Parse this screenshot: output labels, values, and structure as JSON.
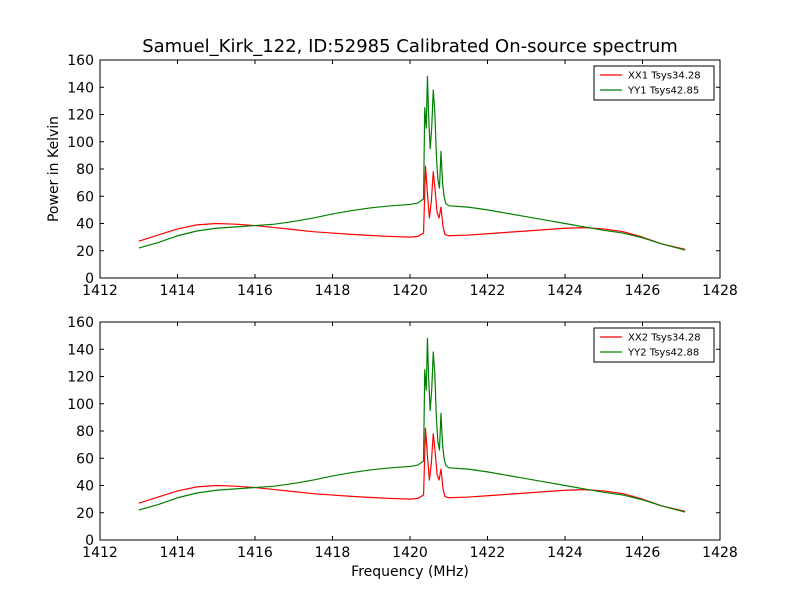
{
  "chart_data": [
    {
      "type": "line",
      "title": "Samuel_Kirk_122, ID:52985 Calibrated On-source spectrum",
      "xlabel": "",
      "ylabel": "Power in Kelvin",
      "xlim": [
        1412,
        1428
      ],
      "ylim": [
        0,
        160
      ],
      "xticks": [
        1412,
        1414,
        1416,
        1418,
        1420,
        1422,
        1424,
        1426,
        1428
      ],
      "yticks": [
        0,
        20,
        40,
        60,
        80,
        100,
        120,
        140,
        160
      ],
      "grid": false,
      "legend_position": "top-right",
      "series": [
        {
          "name": "XX1 Tsys34.28",
          "color": "#ff0000",
          "x": [
            1413.0,
            1413.5,
            1414.0,
            1414.5,
            1415.0,
            1415.5,
            1416.0,
            1416.5,
            1417.0,
            1417.5,
            1418.0,
            1418.5,
            1419.0,
            1419.5,
            1420.0,
            1420.2,
            1420.35,
            1420.4,
            1420.45,
            1420.5,
            1420.55,
            1420.6,
            1420.65,
            1420.7,
            1420.75,
            1420.8,
            1420.85,
            1420.9,
            1421.0,
            1421.5,
            1422.0,
            1422.5,
            1423.0,
            1423.5,
            1424.0,
            1424.5,
            1425.0,
            1425.5,
            1426.0,
            1426.5,
            1427.1
          ],
          "values": [
            27,
            31.5,
            36,
            39,
            40,
            39.5,
            38.5,
            37,
            35.5,
            34,
            33,
            32,
            31.2,
            30.5,
            30,
            30.5,
            33,
            82,
            62,
            44,
            56,
            78,
            64,
            48,
            44,
            52,
            38,
            32,
            31,
            31.5,
            32.5,
            33.5,
            34.5,
            35.5,
            36.5,
            37,
            36,
            34,
            30,
            25,
            21
          ]
        },
        {
          "name": "YY1 Tsys42.85",
          "color": "#008000",
          "x": [
            1413.0,
            1413.5,
            1414.0,
            1414.5,
            1415.0,
            1415.5,
            1416.0,
            1416.5,
            1417.0,
            1417.5,
            1418.0,
            1418.5,
            1419.0,
            1419.5,
            1420.0,
            1420.2,
            1420.35,
            1420.38,
            1420.42,
            1420.45,
            1420.48,
            1420.52,
            1420.56,
            1420.6,
            1420.64,
            1420.68,
            1420.72,
            1420.76,
            1420.8,
            1420.84,
            1420.88,
            1420.92,
            1421.0,
            1421.5,
            1422.0,
            1422.5,
            1423.0,
            1423.5,
            1424.0,
            1424.5,
            1425.0,
            1425.5,
            1426.0,
            1426.5,
            1427.1
          ],
          "values": [
            22,
            26,
            31,
            34.5,
            36.5,
            37.5,
            38.5,
            39.5,
            41.5,
            44,
            47,
            49.5,
            51.5,
            53,
            54,
            55,
            58,
            125,
            110,
            148,
            120,
            95,
            110,
            138,
            122,
            90,
            72,
            66,
            93,
            70,
            60,
            55,
            53,
            52,
            50,
            47.5,
            45,
            42.5,
            40,
            37.5,
            35,
            33,
            29.5,
            25,
            20.5
          ]
        }
      ]
    },
    {
      "type": "line",
      "title": "",
      "xlabel": "Frequency (MHz)",
      "ylabel": "",
      "xlim": [
        1412,
        1428
      ],
      "ylim": [
        0,
        160
      ],
      "xticks": [
        1412,
        1414,
        1416,
        1418,
        1420,
        1422,
        1424,
        1426,
        1428
      ],
      "yticks": [
        0,
        20,
        40,
        60,
        80,
        100,
        120,
        140,
        160
      ],
      "grid": false,
      "legend_position": "top-right",
      "series": [
        {
          "name": "XX2 Tsys34.28",
          "color": "#ff0000",
          "x": [
            1413.0,
            1413.5,
            1414.0,
            1414.5,
            1415.0,
            1415.5,
            1416.0,
            1416.5,
            1417.0,
            1417.5,
            1418.0,
            1418.5,
            1419.0,
            1419.5,
            1420.0,
            1420.2,
            1420.35,
            1420.4,
            1420.45,
            1420.5,
            1420.55,
            1420.6,
            1420.65,
            1420.7,
            1420.75,
            1420.8,
            1420.85,
            1420.9,
            1421.0,
            1421.5,
            1422.0,
            1422.5,
            1423.0,
            1423.5,
            1424.0,
            1424.5,
            1425.0,
            1425.5,
            1426.0,
            1426.5,
            1427.1
          ],
          "values": [
            27,
            31.5,
            36,
            39,
            40,
            39.5,
            38.5,
            37,
            35.5,
            34,
            33,
            32,
            31.2,
            30.5,
            30,
            30.5,
            33,
            82,
            62,
            44,
            56,
            78,
            64,
            48,
            44,
            52,
            38,
            32,
            31,
            31.5,
            32.5,
            33.5,
            34.5,
            35.5,
            36.5,
            37,
            36,
            34,
            30,
            25,
            21
          ]
        },
        {
          "name": "YY2 Tsys42.88",
          "color": "#008000",
          "x": [
            1413.0,
            1413.5,
            1414.0,
            1414.5,
            1415.0,
            1415.5,
            1416.0,
            1416.5,
            1417.0,
            1417.5,
            1418.0,
            1418.5,
            1419.0,
            1419.5,
            1420.0,
            1420.2,
            1420.35,
            1420.38,
            1420.42,
            1420.45,
            1420.48,
            1420.52,
            1420.56,
            1420.6,
            1420.64,
            1420.68,
            1420.72,
            1420.76,
            1420.8,
            1420.84,
            1420.88,
            1420.92,
            1421.0,
            1421.5,
            1422.0,
            1422.5,
            1423.0,
            1423.5,
            1424.0,
            1424.5,
            1425.0,
            1425.5,
            1426.0,
            1426.5,
            1427.1
          ],
          "values": [
            22,
            26,
            31,
            34.5,
            36.5,
            37.5,
            38.5,
            39.5,
            41.5,
            44,
            47,
            49.5,
            51.5,
            53,
            54,
            55,
            58,
            125,
            110,
            148,
            120,
            95,
            110,
            138,
            122,
            90,
            72,
            66,
            93,
            70,
            60,
            55,
            53,
            52,
            50,
            47.5,
            45,
            42.5,
            40,
            37.5,
            35,
            33,
            29.5,
            25,
            20.5
          ]
        }
      ]
    }
  ]
}
